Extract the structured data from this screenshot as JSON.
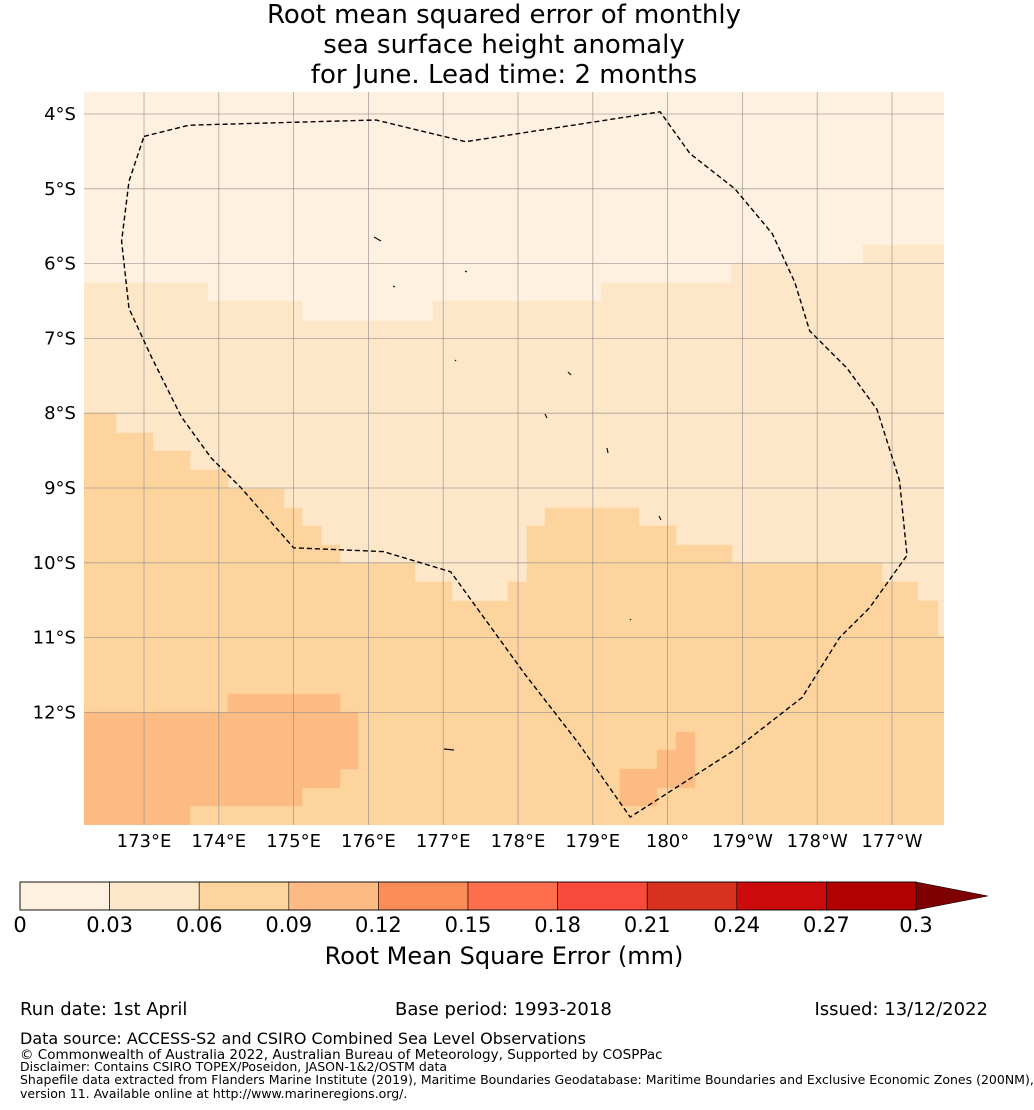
{
  "title": {
    "line1": "Root mean squared error of monthly",
    "line2": "sea surface height anomaly",
    "line3": "for June. Lead time: 2 months"
  },
  "map": {
    "lat_ticks": [
      "4°S",
      "5°S",
      "6°S",
      "7°S",
      "8°S",
      "9°S",
      "10°S",
      "11°S",
      "12°S"
    ],
    "lat_values": [
      -4,
      -5,
      -6,
      -7,
      -8,
      -9,
      -10,
      -11,
      -12
    ],
    "lon_ticks": [
      "173°E",
      "174°E",
      "175°E",
      "176°E",
      "177°E",
      "178°E",
      "179°E",
      "180°",
      "179°W",
      "178°W",
      "177°W"
    ],
    "lon_values": [
      173,
      174,
      175,
      176,
      177,
      178,
      179,
      180,
      181,
      182,
      183
    ],
    "lon_range": [
      172.2,
      183.7
    ],
    "lat_range": [
      -13.5,
      -3.7
    ],
    "gridlines": true,
    "boundary_style": "dashed",
    "eez_boundary_lonlat": [
      [
        173.0,
        -4.3
      ],
      [
        173.6,
        -4.15
      ],
      [
        176.1,
        -4.08
      ],
      [
        177.3,
        -4.37
      ],
      [
        179.9,
        -3.97
      ],
      [
        180.3,
        -4.53
      ],
      [
        180.9,
        -5.0
      ],
      [
        181.4,
        -5.6
      ],
      [
        181.7,
        -6.25
      ],
      [
        181.9,
        -6.9
      ],
      [
        182.4,
        -7.4
      ],
      [
        182.8,
        -7.95
      ],
      [
        183.1,
        -8.9
      ],
      [
        183.2,
        -9.9
      ],
      [
        182.7,
        -10.6
      ],
      [
        182.3,
        -11.0
      ],
      [
        181.8,
        -11.8
      ],
      [
        180.9,
        -12.5
      ],
      [
        179.5,
        -13.4
      ],
      [
        178.8,
        -12.4
      ],
      [
        178.1,
        -11.5
      ],
      [
        177.1,
        -10.12
      ],
      [
        176.2,
        -9.85
      ],
      [
        175.0,
        -9.8
      ],
      [
        174.3,
        -9.0
      ],
      [
        173.9,
        -8.6
      ],
      [
        173.5,
        -8.05
      ],
      [
        173.1,
        -7.25
      ],
      [
        172.8,
        -6.6
      ],
      [
        172.7,
        -5.7
      ],
      [
        172.8,
        -4.9
      ]
    ]
  },
  "colorbar": {
    "title": "Root Mean Square Error (mm)",
    "tick_labels": [
      "0",
      "0.03",
      "0.06",
      "0.09",
      "0.12",
      "0.15",
      "0.18",
      "0.21",
      "0.24",
      "0.27",
      "0.3"
    ],
    "colors": [
      "#fff1e0",
      "#fee6c9",
      "#fdd49e",
      "#fdbb84",
      "#fc8d59",
      "#fe6e4d",
      "#f84a3d",
      "#d7301f",
      "#cc0c0c",
      "#b30000",
      "#7f0000"
    ]
  },
  "footer": {
    "run_date": "Run date: 1st April",
    "base_period": "Base period: 1993-2018",
    "issued": "Issued: 13/12/2022",
    "data_source": "Data source: ACCESS-S2 and CSIRO Combined Sea Level Observations",
    "copyright": "© Commonwealth of Australia 2022, Australian Bureau of Meteorology, Supported by COSPPac",
    "disclaimer": "Disclaimer: Contains CSIRO TOPEX/Poseidon, JASON-1&2/OSTM data",
    "shapefile_1": "Shapefile data extracted from Flanders Marine Institute (2019), Maritime Boundaries Geodatabase: Maritime Boundaries and Exclusive Economic Zones (200NM),",
    "shapefile_2": "version 11. Available online at http://www.marineregions.org/."
  }
}
